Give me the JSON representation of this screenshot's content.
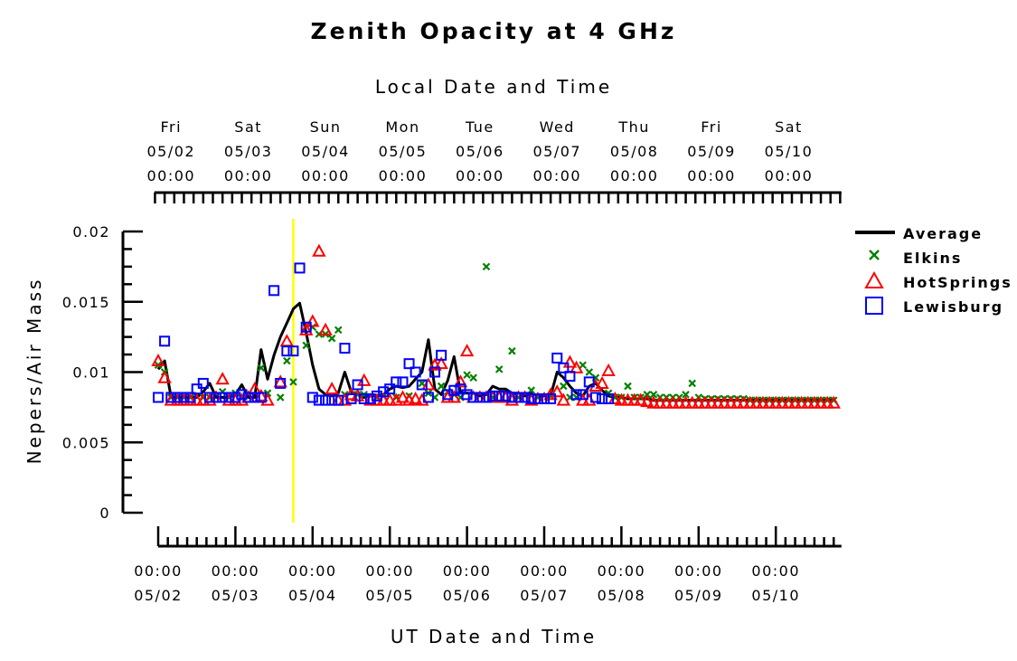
{
  "chart_data": {
    "type": "line",
    "title": "Zenith Opacity at 4 GHz",
    "top_axis_label": "Local Date and Time",
    "xlabel": "UT Date and Time",
    "ylabel": "Nepers/Air Mass",
    "ylim": [
      0,
      0.02
    ],
    "y_ticks": [
      {
        "value": 0,
        "label": "0"
      },
      {
        "value": 0.005,
        "label": "0.005"
      },
      {
        "value": 0.01,
        "label": "0.01"
      },
      {
        "value": 0.015,
        "label": "0.015"
      },
      {
        "value": 0.02,
        "label": "0.02"
      }
    ],
    "xlim_days": [
      -0.05,
      8.85
    ],
    "bottom_ticks": [
      {
        "day": 0,
        "time": "00:00",
        "date": "05/02"
      },
      {
        "day": 1,
        "time": "00:00",
        "date": "05/03"
      },
      {
        "day": 2,
        "time": "00:00",
        "date": "05/04"
      },
      {
        "day": 3,
        "time": "00:00",
        "date": "05/05"
      },
      {
        "day": 4,
        "time": "00:00",
        "date": "05/06"
      },
      {
        "day": 5,
        "time": "00:00",
        "date": "05/07"
      },
      {
        "day": 6,
        "time": "00:00",
        "date": "05/08"
      },
      {
        "day": 7,
        "time": "00:00",
        "date": "05/09"
      },
      {
        "day": 8,
        "time": "00:00",
        "date": "05/10"
      }
    ],
    "top_ticks": [
      {
        "day": 0.167,
        "dow": "Fri",
        "date": "05/02",
        "time": "00:00"
      },
      {
        "day": 1.167,
        "dow": "Sat",
        "date": "05/03",
        "time": "00:00"
      },
      {
        "day": 2.167,
        "dow": "Sun",
        "date": "05/04",
        "time": "00:00"
      },
      {
        "day": 3.167,
        "dow": "Mon",
        "date": "05/05",
        "time": "00:00"
      },
      {
        "day": 4.167,
        "dow": "Tue",
        "date": "05/06",
        "time": "00:00"
      },
      {
        "day": 5.167,
        "dow": "Wed",
        "date": "05/07",
        "time": "00:00"
      },
      {
        "day": 6.167,
        "dow": "Thu",
        "date": "05/08",
        "time": "00:00"
      },
      {
        "day": 7.167,
        "dow": "Fri",
        "date": "05/09",
        "time": "00:00"
      },
      {
        "day": 8.167,
        "dow": "Sat",
        "date": "05/10",
        "time": "00:00"
      }
    ],
    "marker_line_day": 1.75,
    "legend_position": "right",
    "series": [
      {
        "name": "Average",
        "kind": "line",
        "color": "#000000",
        "x": [
          0,
          0.083,
          0.167,
          0.25,
          0.333,
          0.417,
          0.5,
          0.583,
          0.667,
          0.75,
          0.833,
          0.917,
          1.0,
          1.083,
          1.167,
          1.25,
          1.333,
          1.417,
          1.5,
          1.583,
          1.667,
          1.75,
          1.833,
          1.917,
          2.0,
          2.083,
          2.167,
          2.25,
          2.333,
          2.417,
          2.5,
          2.583,
          2.667,
          2.75,
          2.833,
          2.917,
          3.0,
          3.083,
          3.167,
          3.25,
          3.333,
          3.417,
          3.5,
          3.583,
          3.667,
          3.75,
          3.833,
          3.917,
          4.0,
          4.083,
          4.167,
          4.25,
          4.333,
          4.417,
          4.5,
          4.583,
          4.667,
          4.75,
          4.833,
          4.917,
          5.0,
          5.083,
          5.167,
          5.25,
          5.333,
          5.417,
          5.5,
          5.583,
          5.667,
          5.75,
          5.833,
          5.917,
          6.0,
          6.083,
          6.167,
          6.25,
          6.333,
          6.417,
          6.5,
          6.583,
          6.667,
          6.75,
          6.833,
          6.917,
          7.0,
          7.083,
          7.167,
          7.25,
          7.333,
          7.417,
          7.5,
          7.583,
          7.667,
          7.75,
          7.833,
          7.917,
          8.0,
          8.083,
          8.167,
          8.25,
          8.333,
          8.417,
          8.5,
          8.583,
          8.667,
          8.75
        ],
        "y": [
          0.0102,
          0.0108,
          0.0082,
          0.0082,
          0.0082,
          0.0082,
          0.0082,
          0.0086,
          0.0092,
          0.0082,
          0.0082,
          0.0082,
          0.0084,
          0.0091,
          0.0082,
          0.0082,
          0.0116,
          0.0095,
          0.0112,
          0.0125,
          0.0135,
          0.0145,
          0.0149,
          0.0128,
          0.0105,
          0.0088,
          0.0084,
          0.0083,
          0.0085,
          0.01,
          0.0086,
          0.0084,
          0.0082,
          0.0083,
          0.0083,
          0.0084,
          0.0088,
          0.009,
          0.0089,
          0.009,
          0.0095,
          0.01,
          0.0123,
          0.0088,
          0.0084,
          0.0094,
          0.0111,
          0.0085,
          0.0085,
          0.0085,
          0.0083,
          0.0084,
          0.009,
          0.0088,
          0.0088,
          0.0085,
          0.0085,
          0.0083,
          0.0085,
          0.0083,
          0.0083,
          0.0083,
          0.01,
          0.0096,
          0.009,
          0.0085,
          0.0083,
          0.009,
          0.0092,
          0.0087,
          0.0083,
          0.0082,
          0.0082,
          0.0081,
          0.0081,
          0.0081,
          0.0081,
          0.008,
          0.008,
          0.008,
          0.008,
          0.008,
          0.008,
          0.008,
          0.008,
          0.008,
          0.008,
          0.008,
          0.008,
          0.008,
          0.008,
          0.008,
          0.008,
          0.008,
          0.008,
          0.008,
          0.008,
          0.008,
          0.008,
          0.008,
          0.008,
          0.008,
          0.008,
          0.008,
          0.008,
          0.008
        ]
      },
      {
        "name": "Elkins",
        "kind": "x-marker",
        "color": "#008000",
        "x": [
          0,
          0.083,
          0.167,
          0.25,
          0.333,
          0.417,
          0.583,
          0.667,
          0.833,
          0.917,
          1.0,
          1.083,
          1.333,
          1.417,
          1.583,
          1.667,
          1.75,
          1.917,
          2.0,
          2.083,
          2.167,
          2.25,
          2.333,
          2.417,
          2.583,
          2.667,
          2.833,
          2.917,
          3.083,
          3.25,
          3.417,
          3.5,
          3.583,
          3.667,
          3.75,
          3.833,
          3.917,
          4.0,
          4.083,
          4.25,
          4.333,
          4.417,
          4.583,
          4.667,
          4.833,
          4.917,
          5.083,
          5.25,
          5.333,
          5.417,
          5.5,
          5.583,
          5.667,
          5.833,
          5.917,
          6.0,
          6.083,
          6.167,
          6.25,
          6.333,
          6.417,
          6.5,
          6.583,
          6.667,
          6.75,
          6.833,
          6.917,
          7.0,
          7.083,
          7.167,
          7.25,
          7.333,
          7.417,
          7.5,
          7.583,
          7.667,
          7.75,
          7.833,
          7.917,
          8.0,
          8.083,
          8.167,
          8.25,
          8.333,
          8.417,
          8.5,
          8.583,
          8.667,
          8.75
        ],
        "y": [
          0.0105,
          0.01,
          0.0082,
          0.0082,
          0.0082,
          0.0082,
          0.0082,
          0.0082,
          0.0086,
          0.0082,
          0.0085,
          0.0082,
          0.0103,
          0.0085,
          0.0082,
          0.0108,
          0.0093,
          0.0119,
          0.0132,
          0.0127,
          0.0127,
          0.0124,
          0.013,
          0.0084,
          0.0084,
          0.0084,
          0.0082,
          0.0083,
          0.0082,
          0.0083,
          0.0092,
          0.0085,
          0.0082,
          0.009,
          0.0086,
          0.0084,
          0.0082,
          0.0098,
          0.0096,
          0.0175,
          0.0082,
          0.0102,
          0.0115,
          0.0082,
          0.0087,
          0.0082,
          0.0083,
          0.009,
          0.0082,
          0.0082,
          0.0105,
          0.01,
          0.0096,
          0.0085,
          0.0082,
          0.0082,
          0.009,
          0.0082,
          0.0082,
          0.0084,
          0.0084,
          0.0082,
          0.0082,
          0.0082,
          0.0082,
          0.0084,
          0.0092,
          0.0082,
          0.0081,
          0.0081,
          0.0081,
          0.0081,
          0.0081,
          0.0081,
          0.0081,
          0.008,
          0.008,
          0.008,
          0.008,
          0.008,
          0.008,
          0.008,
          0.008,
          0.008,
          0.008,
          0.008,
          0.008,
          0.008,
          0.008
        ]
      },
      {
        "name": "HotSprings",
        "kind": "triangle-marker",
        "color": "#ff0000",
        "x": [
          0,
          0.083,
          0.167,
          0.25,
          0.333,
          0.417,
          0.5,
          0.583,
          0.667,
          0.75,
          0.833,
          0.917,
          1.0,
          1.083,
          1.167,
          1.25,
          1.333,
          1.417,
          1.583,
          1.667,
          1.917,
          2.0,
          2.083,
          2.167,
          2.25,
          2.333,
          2.417,
          2.5,
          2.583,
          2.667,
          2.75,
          2.833,
          2.917,
          3.0,
          3.083,
          3.167,
          3.25,
          3.333,
          3.417,
          3.5,
          3.583,
          3.667,
          3.75,
          3.833,
          3.917,
          4.0,
          4.083,
          4.167,
          4.25,
          4.333,
          4.417,
          4.5,
          4.583,
          4.667,
          4.75,
          4.833,
          4.917,
          5.0,
          5.083,
          5.167,
          5.25,
          5.333,
          5.417,
          5.5,
          5.583,
          5.667,
          5.75,
          5.833,
          5.917,
          6.0,
          6.083,
          6.167,
          6.25,
          6.333,
          6.417,
          6.5,
          6.583,
          6.667,
          6.75,
          6.833,
          6.917,
          7.0,
          7.083,
          7.167,
          7.25,
          7.333,
          7.417,
          7.5,
          7.583,
          7.667,
          7.75,
          7.833,
          7.917,
          8.0,
          8.083,
          8.167,
          8.25,
          8.333,
          8.417,
          8.5,
          8.583,
          8.667,
          8.75
        ],
        "y": [
          0.0108,
          0.0096,
          0.008,
          0.008,
          0.008,
          0.008,
          0.008,
          0.008,
          0.008,
          0.0082,
          0.0095,
          0.008,
          0.008,
          0.008,
          0.0082,
          0.0088,
          0.0083,
          0.008,
          0.0093,
          0.0122,
          0.013,
          0.0136,
          0.0186,
          0.013,
          0.0088,
          0.008,
          0.008,
          0.0084,
          0.0083,
          0.0094,
          0.008,
          0.008,
          0.008,
          0.008,
          0.008,
          0.0082,
          0.008,
          0.0081,
          0.008,
          0.0091,
          0.0105,
          0.0106,
          0.0082,
          0.0082,
          0.0093,
          0.0115,
          0.0082,
          0.0082,
          0.0082,
          0.0082,
          0.0082,
          0.0082,
          0.008,
          0.0082,
          0.0082,
          0.008,
          0.0081,
          0.0081,
          0.0084,
          0.0086,
          0.008,
          0.0107,
          0.0103,
          0.008,
          0.008,
          0.009,
          0.0092,
          0.0101,
          0.0081,
          0.008,
          0.008,
          0.008,
          0.008,
          0.0079,
          0.0078,
          0.0078,
          0.0078,
          0.0078,
          0.0078,
          0.0078,
          0.0078,
          0.0078,
          0.0078,
          0.0078,
          0.0078,
          0.0078,
          0.0078,
          0.0078,
          0.0078,
          0.0078,
          0.0078,
          0.0078,
          0.0078,
          0.0078,
          0.0078,
          0.0078,
          0.0078,
          0.0078,
          0.0078,
          0.0078,
          0.0078,
          0.0078,
          0.0078
        ]
      },
      {
        "name": "Lewisburg",
        "kind": "square-marker",
        "color": "#0000ff",
        "x": [
          0,
          0.083,
          0.167,
          0.25,
          0.333,
          0.417,
          0.5,
          0.583,
          0.667,
          0.75,
          0.833,
          0.917,
          1.0,
          1.083,
          1.167,
          1.25,
          1.333,
          1.5,
          1.583,
          1.667,
          1.75,
          1.833,
          1.917,
          2.0,
          2.083,
          2.167,
          2.25,
          2.333,
          2.417,
          2.5,
          2.583,
          2.667,
          2.75,
          2.833,
          2.917,
          3.0,
          3.083,
          3.167,
          3.25,
          3.333,
          3.417,
          3.5,
          3.583,
          3.667,
          3.75,
          3.833,
          3.917,
          4.0,
          4.083,
          4.167,
          4.25,
          4.333,
          4.417,
          4.5,
          4.583,
          4.667,
          4.75,
          4.833,
          4.917,
          5.0,
          5.083,
          5.167,
          5.25,
          5.333,
          5.417,
          5.5,
          5.583,
          5.667,
          5.75,
          5.833
        ],
        "y": [
          0.0082,
          0.0122,
          0.0082,
          0.0082,
          0.0082,
          0.0082,
          0.0088,
          0.0092,
          0.0082,
          0.0082,
          0.0082,
          0.0082,
          0.0082,
          0.0084,
          0.0082,
          0.0082,
          0.0082,
          0.0158,
          0.0092,
          0.0115,
          0.0115,
          0.0174,
          0.0132,
          0.0082,
          0.008,
          0.008,
          0.008,
          0.008,
          0.0117,
          0.0081,
          0.0091,
          0.0081,
          0.0081,
          0.0083,
          0.0086,
          0.0088,
          0.0093,
          0.0093,
          0.0106,
          0.01,
          0.0091,
          0.0082,
          0.01,
          0.0112,
          0.0084,
          0.0087,
          0.0088,
          0.0084,
          0.0082,
          0.0082,
          0.0082,
          0.0083,
          0.0083,
          0.0083,
          0.0082,
          0.0082,
          0.0082,
          0.0081,
          0.0081,
          0.0081,
          0.0081,
          0.011,
          0.0103,
          0.0097,
          0.0084,
          0.0084,
          0.0093,
          0.0082,
          0.0081,
          0.0081
        ]
      }
    ]
  }
}
